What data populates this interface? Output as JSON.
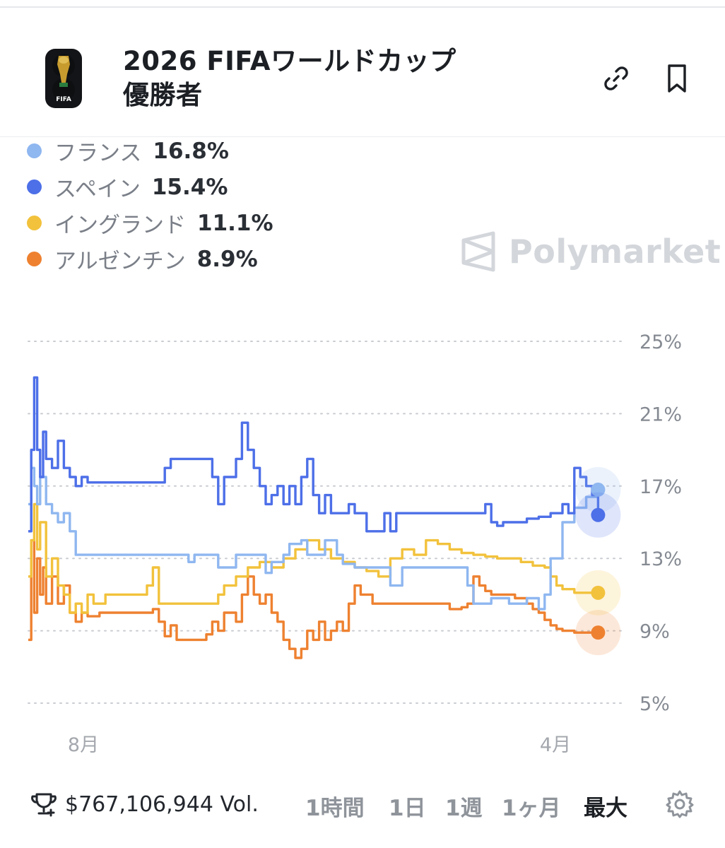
{
  "header": {
    "title_line1": "2026 FIFAワールドカップ",
    "title_line2": "優勝者",
    "logo_text": "FIFA",
    "link_icon": "link-icon",
    "bookmark_icon": "bookmark-icon"
  },
  "legend": [
    {
      "name": "フランス",
      "value": "16.8%",
      "color": "#8fb7f0"
    },
    {
      "name": "スペイン",
      "value": "15.4%",
      "color": "#4d6fe8"
    },
    {
      "name": "イングランド",
      "value": "11.1%",
      "color": "#f2c23c"
    },
    {
      "name": "アルゼンチン",
      "value": "8.9%",
      "color": "#ee8130"
    }
  ],
  "watermark": "Polymarket",
  "chart_data": {
    "type": "line",
    "x_tick_labels": [
      "8月",
      "4月"
    ],
    "y_tick_labels": [
      "25%",
      "21%",
      "17%",
      "13%",
      "9%",
      "5%"
    ],
    "ylim": [
      5,
      25
    ],
    "grid": true,
    "x_range": [
      0,
      100
    ],
    "series": [
      {
        "name": "フランス",
        "color": "#8fb7f0",
        "points": [
          [
            0,
            16
          ],
          [
            0.5,
            18
          ],
          [
            1,
            17
          ],
          [
            1.5,
            16
          ],
          [
            2,
            17.5
          ],
          [
            3,
            16
          ],
          [
            4,
            15.5
          ],
          [
            5,
            15
          ],
          [
            6,
            15.5
          ],
          [
            7,
            14.5
          ],
          [
            8,
            13.2
          ],
          [
            13,
            13.2
          ],
          [
            26,
            13.2
          ],
          [
            27,
            12.8
          ],
          [
            28,
            13.2
          ],
          [
            31,
            13.2
          ],
          [
            32,
            12.5
          ],
          [
            34,
            12.5
          ],
          [
            35,
            13.2
          ],
          [
            38,
            13.2
          ],
          [
            40,
            12.2
          ],
          [
            41,
            12.8
          ],
          [
            43,
            13.2
          ],
          [
            44,
            13.8
          ],
          [
            46,
            14
          ],
          [
            47,
            13.2
          ],
          [
            49,
            13.2
          ],
          [
            50,
            14
          ],
          [
            52,
            13.2
          ],
          [
            53,
            12.7
          ],
          [
            55,
            12.5
          ],
          [
            60,
            12.5
          ],
          [
            61,
            11.5
          ],
          [
            63,
            12.5
          ],
          [
            73,
            12.5
          ],
          [
            74,
            11.5
          ],
          [
            75,
            10.5
          ],
          [
            78,
            10.8
          ],
          [
            81,
            10.5
          ],
          [
            84,
            10.8
          ],
          [
            86,
            10.2
          ],
          [
            87,
            11
          ],
          [
            88,
            13
          ],
          [
            90,
            15
          ],
          [
            92,
            15.8
          ],
          [
            94,
            16.4
          ],
          [
            96,
            16.8
          ]
        ]
      },
      {
        "name": "スペイン",
        "color": "#4d6fe8",
        "points": [
          [
            0,
            14.5
          ],
          [
            0.5,
            19
          ],
          [
            1,
            23
          ],
          [
            1.5,
            19
          ],
          [
            2,
            17.5
          ],
          [
            2.5,
            20
          ],
          [
            3,
            18.5
          ],
          [
            4,
            18
          ],
          [
            5,
            19.5
          ],
          [
            6,
            18
          ],
          [
            7,
            17.5
          ],
          [
            8,
            17
          ],
          [
            9,
            17.5
          ],
          [
            10,
            17.2
          ],
          [
            22,
            17.2
          ],
          [
            23,
            18
          ],
          [
            24,
            18.5
          ],
          [
            30,
            18.5
          ],
          [
            31,
            17.5
          ],
          [
            32,
            16
          ],
          [
            33,
            17.5
          ],
          [
            35,
            18.5
          ],
          [
            36,
            20.5
          ],
          [
            37,
            19
          ],
          [
            38,
            18
          ],
          [
            39,
            17
          ],
          [
            40,
            16
          ],
          [
            41,
            16.5
          ],
          [
            42,
            17
          ],
          [
            43,
            16
          ],
          [
            44,
            17
          ],
          [
            45,
            16
          ],
          [
            46,
            17.5
          ],
          [
            47,
            18.5
          ],
          [
            48,
            16.5
          ],
          [
            49,
            15.5
          ],
          [
            50,
            16.5
          ],
          [
            51,
            15.5
          ],
          [
            53,
            15.5
          ],
          [
            54,
            16
          ],
          [
            55,
            15.5
          ],
          [
            57,
            14.5
          ],
          [
            58,
            14.5
          ],
          [
            59,
            14.5
          ],
          [
            60,
            15.5
          ],
          [
            61,
            14.5
          ],
          [
            62,
            15.5
          ],
          [
            65,
            15.5
          ],
          [
            68,
            15.5
          ],
          [
            70,
            15.5
          ],
          [
            73,
            15.5
          ],
          [
            76,
            15.5
          ],
          [
            77,
            16
          ],
          [
            78,
            15
          ],
          [
            79,
            14.8
          ],
          [
            80,
            15
          ],
          [
            82,
            15
          ],
          [
            84,
            15.2
          ],
          [
            86,
            15.3
          ],
          [
            88,
            15.5
          ],
          [
            90,
            16
          ],
          [
            91,
            15.5
          ],
          [
            92,
            18
          ],
          [
            93,
            17.5
          ],
          [
            94,
            17
          ],
          [
            95,
            16.5
          ],
          [
            96,
            15.4
          ]
        ]
      },
      {
        "name": "イングランド",
        "color": "#f2c23c",
        "points": [
          [
            0,
            12
          ],
          [
            0.5,
            14
          ],
          [
            1,
            16
          ],
          [
            1.5,
            13.5
          ],
          [
            2,
            15
          ],
          [
            3,
            12
          ],
          [
            4,
            13
          ],
          [
            5,
            11.5
          ],
          [
            6,
            11
          ],
          [
            7,
            10
          ],
          [
            8,
            10.5
          ],
          [
            9,
            10
          ],
          [
            10,
            11
          ],
          [
            11,
            10.5
          ],
          [
            13,
            11
          ],
          [
            16,
            11
          ],
          [
            18,
            11
          ],
          [
            20,
            11.5
          ],
          [
            21,
            12.5
          ],
          [
            22,
            10.5
          ],
          [
            23,
            10.5
          ],
          [
            25,
            10.5
          ],
          [
            28,
            10.5
          ],
          [
            30,
            10.5
          ],
          [
            32,
            11
          ],
          [
            33,
            11.5
          ],
          [
            35,
            12
          ],
          [
            37,
            12.5
          ],
          [
            39,
            12.8
          ],
          [
            41,
            12.5
          ],
          [
            43,
            13
          ],
          [
            45,
            13.5
          ],
          [
            47,
            14
          ],
          [
            49,
            13.5
          ],
          [
            51,
            13
          ],
          [
            53,
            12.8
          ],
          [
            55,
            12.5
          ],
          [
            57,
            12.3
          ],
          [
            59,
            12
          ],
          [
            61,
            13
          ],
          [
            63,
            13.5
          ],
          [
            65,
            13.2
          ],
          [
            67,
            14
          ],
          [
            69,
            13.8
          ],
          [
            71,
            13.5
          ],
          [
            73,
            13.3
          ],
          [
            75,
            13.2
          ],
          [
            77,
            13.1
          ],
          [
            79,
            13
          ],
          [
            81,
            13
          ],
          [
            83,
            12.8
          ],
          [
            85,
            12.6
          ],
          [
            87,
            12.5
          ],
          [
            88,
            12
          ],
          [
            89,
            11.5
          ],
          [
            90,
            11.3
          ],
          [
            92,
            11.1
          ],
          [
            94,
            11.1
          ],
          [
            96,
            11.1
          ]
        ]
      },
      {
        "name": "アルゼンチン",
        "color": "#ee8130",
        "points": [
          [
            0,
            8.5
          ],
          [
            0.5,
            14
          ],
          [
            1,
            10
          ],
          [
            1.5,
            13
          ],
          [
            2,
            11
          ],
          [
            2.5,
            12.5
          ],
          [
            3,
            10.5
          ],
          [
            4,
            12
          ],
          [
            5,
            10.5
          ],
          [
            6,
            11.5
          ],
          [
            7,
            10
          ],
          [
            8,
            9.5
          ],
          [
            9,
            10
          ],
          [
            10,
            9.8
          ],
          [
            12,
            10
          ],
          [
            14,
            10
          ],
          [
            16,
            10
          ],
          [
            18,
            10
          ],
          [
            20,
            10
          ],
          [
            21,
            10.2
          ],
          [
            22,
            9.5
          ],
          [
            23,
            8.7
          ],
          [
            24,
            9.3
          ],
          [
            25,
            8.5
          ],
          [
            28,
            8.5
          ],
          [
            30,
            8.8
          ],
          [
            31,
            9.5
          ],
          [
            32,
            9
          ],
          [
            33,
            10
          ],
          [
            35,
            9.5
          ],
          [
            36,
            11
          ],
          [
            37,
            12
          ],
          [
            38,
            11
          ],
          [
            39,
            10.5
          ],
          [
            40,
            11
          ],
          [
            41,
            10
          ],
          [
            42,
            9.5
          ],
          [
            43,
            8.5
          ],
          [
            44,
            8
          ],
          [
            45,
            7.5
          ],
          [
            46,
            8
          ],
          [
            47,
            9
          ],
          [
            48,
            8.5
          ],
          [
            49,
            9.5
          ],
          [
            50,
            8.5
          ],
          [
            51,
            9
          ],
          [
            52,
            9.5
          ],
          [
            53,
            9
          ],
          [
            54,
            10.5
          ],
          [
            55,
            11.5
          ],
          [
            56,
            11
          ],
          [
            58,
            10.5
          ],
          [
            60,
            10.5
          ],
          [
            63,
            10.5
          ],
          [
            66,
            10.5
          ],
          [
            69,
            10.5
          ],
          [
            71,
            10.2
          ],
          [
            73,
            10.3
          ],
          [
            74,
            10.5
          ],
          [
            75,
            12
          ],
          [
            76,
            11.5
          ],
          [
            77,
            11.2
          ],
          [
            78,
            11
          ],
          [
            80,
            11
          ],
          [
            82,
            10.8
          ],
          [
            84,
            10.5
          ],
          [
            85,
            10.2
          ],
          [
            86,
            10
          ],
          [
            87,
            9.6
          ],
          [
            88,
            9.3
          ],
          [
            89,
            9.1
          ],
          [
            90,
            9
          ],
          [
            92,
            8.9
          ],
          [
            94,
            8.9
          ],
          [
            96,
            8.9
          ]
        ]
      }
    ]
  },
  "footer": {
    "volume": "$767,106,944 Vol.",
    "ranges": [
      "1時間",
      "1日",
      "1週",
      "1ヶ月",
      "最大"
    ],
    "active_range": "最大"
  }
}
